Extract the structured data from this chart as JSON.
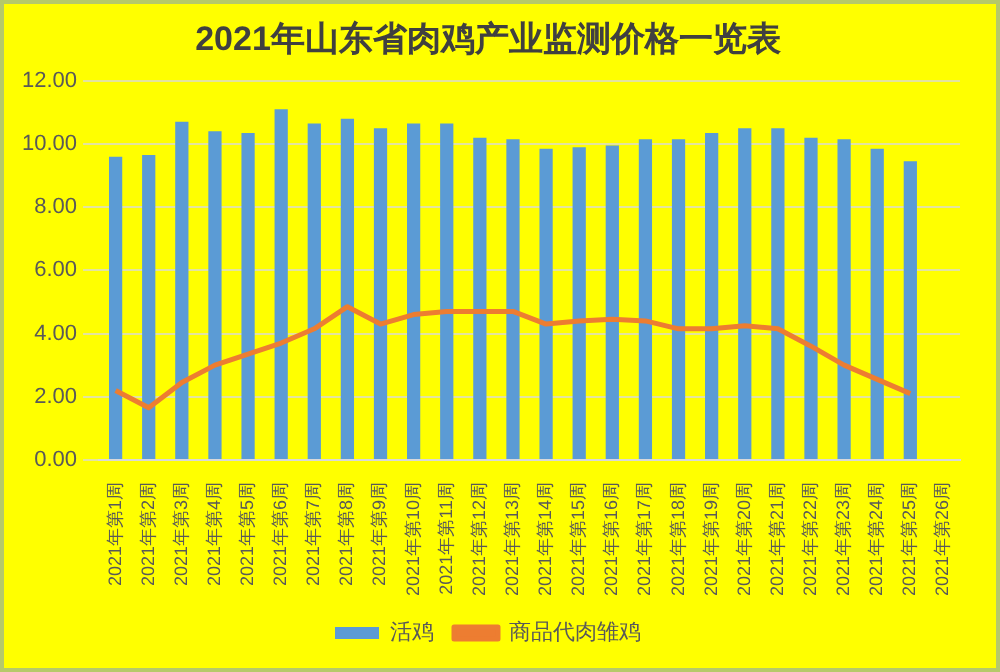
{
  "chart_data": {
    "type": "bar",
    "title": "2021年山东省肉鸡产业监测价格一览表",
    "categories": [
      "2021年第1周",
      "2021年第2周",
      "2021年第3周",
      "2021年第4周",
      "2021年第5周",
      "2021年第6周",
      "2021年第7周",
      "2021年第8周",
      "2021年第9周",
      "2021年第10周",
      "2021年第11周",
      "2021年第12周",
      "2021年第13周",
      "2021年第14周",
      "2021年第15周",
      "2021年第16周",
      "2021年第17周",
      "2021年第18周",
      "2021年第19周",
      "2021年第20周",
      "2021年第21周",
      "2021年第22周",
      "2021年第23周",
      "2021年第24周",
      "2021年第25周",
      "2021年第26周"
    ],
    "series": [
      {
        "name": "活鸡",
        "color": "#5b9bd5",
        "values": [
          9.6,
          9.65,
          10.7,
          10.4,
          10.35,
          11.1,
          10.65,
          10.8,
          10.5,
          10.65,
          10.65,
          10.2,
          10.15,
          9.85,
          9.9,
          9.95,
          10.15,
          10.15,
          10.35,
          10.5,
          10.5,
          10.2,
          10.15,
          9.85,
          9.45,
          null
        ]
      },
      {
        "name": "商品代肉雏鸡",
        "type": "line",
        "color": "#ed7d31",
        "values": [
          2.2,
          1.65,
          2.45,
          3.0,
          3.35,
          3.7,
          4.15,
          4.85,
          4.3,
          4.6,
          4.7,
          4.7,
          4.7,
          4.3,
          4.4,
          4.45,
          4.4,
          4.15,
          4.15,
          4.25,
          4.15,
          3.6,
          3.0,
          2.55,
          2.1,
          null
        ]
      }
    ],
    "ylim": [
      0,
      12
    ],
    "yticks": [
      {
        "value": 0,
        "label": "0.00"
      },
      {
        "value": 2,
        "label": "2.00"
      },
      {
        "value": 4,
        "label": "4.00"
      },
      {
        "value": 6,
        "label": "6.00"
      },
      {
        "value": 8,
        "label": "8.00"
      },
      {
        "value": 10,
        "label": "10.00"
      },
      {
        "value": 12,
        "label": "12.00"
      }
    ],
    "grid": "y",
    "legend": "bottom",
    "marker": "none"
  }
}
